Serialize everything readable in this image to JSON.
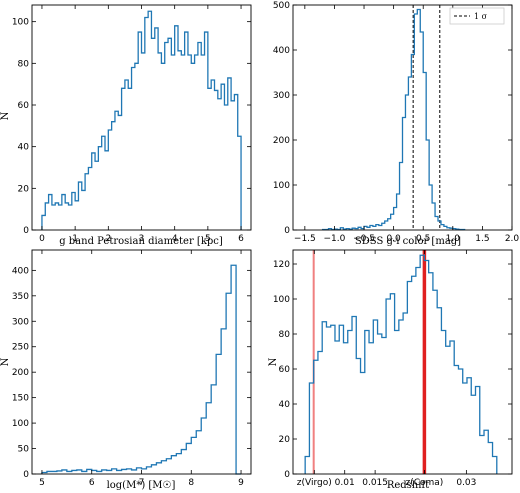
{
  "chart_data": [
    {
      "type": "histogram",
      "xlabel": "g band Petrosian diameter [kpc]",
      "ylabel": "N",
      "xlim": [
        -0.3,
        6.3
      ],
      "ylim": [
        0,
        108
      ],
      "xticks": [
        0,
        1,
        2,
        3,
        4,
        5,
        6
      ],
      "xtick_labels": [
        "0",
        "1",
        "2",
        "3",
        "4",
        "5",
        "6"
      ],
      "yticks": [
        0,
        20,
        40,
        60,
        80,
        100
      ],
      "ytick_labels": [
        "0",
        "20",
        "40",
        "60",
        "80",
        "100"
      ],
      "bin_edges": [
        0.0,
        0.1,
        0.2,
        0.3,
        0.4,
        0.5,
        0.6,
        0.7,
        0.8,
        0.9,
        1.0,
        1.1,
        1.2,
        1.3,
        1.4,
        1.5,
        1.6,
        1.7,
        1.8,
        1.9,
        2.0,
        2.1,
        2.2,
        2.3,
        2.4,
        2.5,
        2.6,
        2.7,
        2.8,
        2.9,
        3.0,
        3.1,
        3.2,
        3.3,
        3.4,
        3.5,
        3.6,
        3.7,
        3.8,
        3.9,
        4.0,
        4.1,
        4.2,
        4.3,
        4.4,
        4.5,
        4.6,
        4.7,
        4.8,
        4.9,
        5.0,
        5.1,
        5.2,
        5.3,
        5.4,
        5.5,
        5.6,
        5.7,
        5.8,
        5.9,
        6.0
      ],
      "counts": [
        7,
        13,
        17,
        12,
        13,
        12,
        17,
        13,
        12,
        18,
        14,
        23,
        19,
        27,
        30,
        37,
        33,
        40,
        45,
        38,
        48,
        52,
        57,
        55,
        68,
        72,
        68,
        78,
        80,
        95,
        85,
        102,
        105,
        92,
        97,
        85,
        80,
        90,
        92,
        84,
        98,
        86,
        84,
        95,
        84,
        80,
        84,
        90,
        84,
        95,
        68,
        72,
        67,
        63,
        70,
        60,
        73,
        62,
        65,
        45,
        0
      ],
      "color": "#1f77b4"
    },
    {
      "type": "histogram",
      "xlabel": "SDSS g-i color [mag]",
      "ylabel": "",
      "xlim": [
        -1.7,
        2.0
      ],
      "ylim": [
        0,
        500
      ],
      "xticks": [
        -1.5,
        -1.0,
        -0.5,
        0.0,
        0.5,
        1.0,
        1.5,
        2.0
      ],
      "xtick_labels": [
        "−1.5",
        "−1.0",
        "−0.5",
        "0.0",
        "0.5",
        "1.0",
        "1.5",
        "2.0"
      ],
      "yticks": [
        0,
        100,
        200,
        300,
        400,
        500
      ],
      "ytick_labels": [
        "0",
        "100",
        "200",
        "300",
        "400",
        "500"
      ],
      "bin_edges": [
        -1.2,
        -1.15,
        -1.1,
        -1.05,
        -1.0,
        -0.95,
        -0.9,
        -0.85,
        -0.8,
        -0.75,
        -0.7,
        -0.65,
        -0.6,
        -0.55,
        -0.5,
        -0.45,
        -0.4,
        -0.35,
        -0.3,
        -0.25,
        -0.2,
        -0.15,
        -0.1,
        -0.05,
        0.0,
        0.05,
        0.1,
        0.15,
        0.2,
        0.25,
        0.3,
        0.35,
        0.4,
        0.45,
        0.5,
        0.55,
        0.6,
        0.65,
        0.7,
        0.75,
        0.8,
        0.85,
        0.9,
        0.95,
        1.0,
        1.05,
        1.1,
        1.15,
        1.2
      ],
      "counts": [
        1,
        1,
        3,
        1,
        2,
        1,
        5,
        2,
        3,
        2,
        4,
        3,
        6,
        3,
        8,
        6,
        10,
        8,
        12,
        10,
        15,
        20,
        25,
        35,
        50,
        80,
        150,
        250,
        300,
        340,
        390,
        480,
        490,
        440,
        350,
        200,
        100,
        60,
        30,
        20,
        12,
        8,
        5,
        4,
        3,
        2,
        1,
        1
      ],
      "sigma_lines": [
        0.33,
        0.78
      ],
      "legend_label": "1 σ",
      "legend_loc": "upper right",
      "color": "#1f77b4"
    },
    {
      "type": "histogram",
      "xlabel": "log(M*) [M☉]",
      "ylabel": "N",
      "xlim": [
        4.8,
        9.2
      ],
      "ylim": [
        0,
        440
      ],
      "xticks": [
        5,
        6,
        7,
        8,
        9
      ],
      "xtick_labels": [
        "5",
        "6",
        "7",
        "8",
        "9"
      ],
      "yticks": [
        0,
        50,
        100,
        150,
        200,
        250,
        300,
        350,
        400
      ],
      "ytick_labels": [
        "0",
        "50",
        "100",
        "150",
        "200",
        "250",
        "300",
        "350",
        "400"
      ],
      "bin_edges": [
        5.0,
        5.1,
        5.2,
        5.3,
        5.4,
        5.5,
        5.6,
        5.7,
        5.8,
        5.9,
        6.0,
        6.1,
        6.2,
        6.3,
        6.4,
        6.5,
        6.6,
        6.7,
        6.8,
        6.9,
        7.0,
        7.1,
        7.2,
        7.3,
        7.4,
        7.5,
        7.6,
        7.7,
        7.8,
        7.9,
        8.0,
        8.1,
        8.2,
        8.3,
        8.4,
        8.5,
        8.6,
        8.7,
        8.8,
        8.9,
        9.0
      ],
      "counts": [
        3,
        5,
        5,
        6,
        8,
        5,
        7,
        8,
        5,
        9,
        7,
        5,
        8,
        7,
        10,
        7,
        9,
        10,
        8,
        12,
        10,
        14,
        18,
        22,
        26,
        30,
        36,
        40,
        48,
        60,
        72,
        85,
        110,
        140,
        175,
        235,
        285,
        355,
        410,
        0
      ],
      "color": "#1f77b4"
    },
    {
      "type": "histogram",
      "xlabel": "Redshift",
      "ylabel": "N",
      "xlim": [
        0.0015,
        0.0375
      ],
      "ylim": [
        0,
        128
      ],
      "xticks": [
        0.005,
        0.01,
        0.015,
        0.0231,
        0.03
      ],
      "xtick_labels": [
        "z(Virgo)",
        "0.01",
        "0.015",
        "z(Coma)",
        "0.03"
      ],
      "yticks": [
        0,
        20,
        40,
        60,
        80,
        100,
        120
      ],
      "ytick_labels": [
        "0",
        "20",
        "40",
        "60",
        "80",
        "100",
        "120"
      ],
      "bin_edges": [
        0.0035,
        0.0042,
        0.0049,
        0.0056,
        0.0063,
        0.007,
        0.0077,
        0.0084,
        0.0091,
        0.0098,
        0.0105,
        0.0112,
        0.0119,
        0.0126,
        0.0133,
        0.014,
        0.0147,
        0.0154,
        0.0161,
        0.0168,
        0.0175,
        0.0182,
        0.0189,
        0.0196,
        0.0203,
        0.021,
        0.0217,
        0.0224,
        0.0231,
        0.0238,
        0.0245,
        0.0252,
        0.0259,
        0.0266,
        0.0273,
        0.028,
        0.0287,
        0.0294,
        0.0301,
        0.0308,
        0.0315,
        0.0322,
        0.0329,
        0.0336,
        0.0343,
        0.035
      ],
      "counts": [
        10,
        52,
        65,
        70,
        87,
        84,
        85,
        76,
        85,
        75,
        82,
        90,
        66,
        58,
        82,
        75,
        88,
        80,
        78,
        100,
        103,
        82,
        88,
        92,
        110,
        113,
        118,
        125,
        122,
        115,
        105,
        95,
        82,
        73,
        76,
        62,
        60,
        52,
        55,
        45,
        50,
        22,
        25,
        18,
        10
      ],
      "vlines": [
        {
          "x": 0.0049,
          "color": "#f08080",
          "width": 2
        },
        {
          "x": 0.0231,
          "color": "#e02020",
          "width": 3.5
        }
      ],
      "color": "#1f77b4"
    }
  ]
}
